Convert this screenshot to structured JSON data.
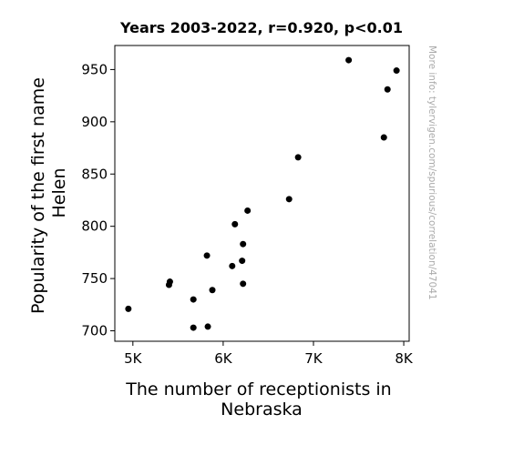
{
  "chart_data": {
    "type": "scatter",
    "title": "Years 2003-2022, r=0.920, p<0.01",
    "xlabel_lines": [
      "The number of receptionists in",
      "Nebraska"
    ],
    "ylabel_lines": [
      "Popularity of the first name",
      "Helen"
    ],
    "side_note": "More info: tylervigen.com/spurious/correlation/47041",
    "xlim": [
      4800,
      8060
    ],
    "ylim": [
      690,
      973
    ],
    "x_ticks": [
      5000,
      6000,
      7000,
      8000
    ],
    "x_tick_labels": [
      "5K",
      "6K",
      "7K",
      "8K"
    ],
    "y_ticks": [
      700,
      750,
      800,
      850,
      900,
      950
    ],
    "y_tick_labels": [
      "700",
      "750",
      "800",
      "850",
      "900",
      "950"
    ],
    "grid": false,
    "marker_color": "#000000",
    "points": [
      {
        "x": 4950,
        "y": 721
      },
      {
        "x": 5400,
        "y": 744
      },
      {
        "x": 5410,
        "y": 747
      },
      {
        "x": 5670,
        "y": 703
      },
      {
        "x": 5670,
        "y": 730
      },
      {
        "x": 5820,
        "y": 772
      },
      {
        "x": 5830,
        "y": 704
      },
      {
        "x": 5880,
        "y": 739
      },
      {
        "x": 6100,
        "y": 762
      },
      {
        "x": 6130,
        "y": 802
      },
      {
        "x": 6210,
        "y": 767
      },
      {
        "x": 6220,
        "y": 745
      },
      {
        "x": 6220,
        "y": 783
      },
      {
        "x": 6270,
        "y": 815
      },
      {
        "x": 6730,
        "y": 826
      },
      {
        "x": 6830,
        "y": 866
      },
      {
        "x": 7390,
        "y": 959
      },
      {
        "x": 7780,
        "y": 885
      },
      {
        "x": 7820,
        "y": 931
      },
      {
        "x": 7920,
        "y": 949
      }
    ]
  }
}
